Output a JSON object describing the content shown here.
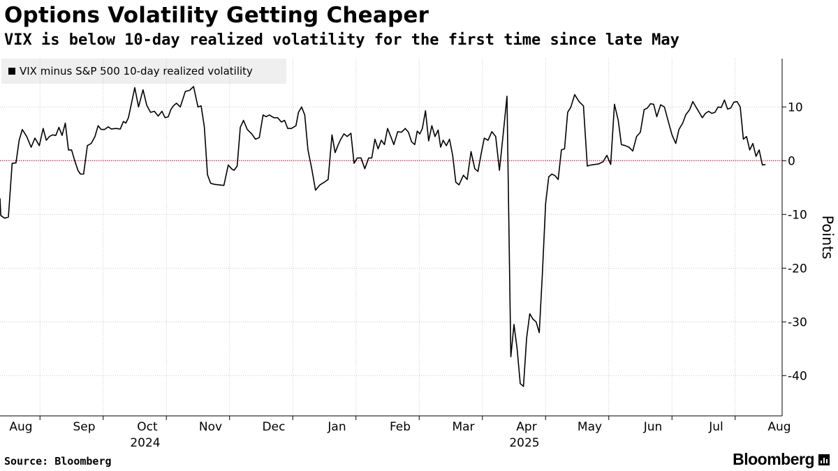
{
  "header": {
    "title": "Options Volatility Getting Cheaper",
    "subtitle": "VIX is below 10-day realized volatility for the first time since late May"
  },
  "footer": {
    "source": "Source: Bloomberg",
    "brand": "Bloomberg"
  },
  "colors": {
    "line": "#000000",
    "zero_line": "#e0435a",
    "grid": "#c8c8c8",
    "legend_bg": "#efefef"
  },
  "chart_data": {
    "type": "line",
    "title": "Options Volatility Getting Cheaper",
    "subtitle": "VIX is below 10-day realized volatility for the first time since late May",
    "ylabel": "Points",
    "xlabel": "",
    "ylim": [
      -47.5,
      19
    ],
    "yticks": [
      10,
      0,
      -10,
      -20,
      -30,
      -40
    ],
    "x_months": [
      "Aug",
      "Sep",
      "Oct",
      "Nov",
      "Dec",
      "Jan",
      "Feb",
      "Mar",
      "Apr",
      "May",
      "Jun",
      "Jul",
      "Aug"
    ],
    "x_years": [
      {
        "label": "2024",
        "month_index": 2
      },
      {
        "label": "2025",
        "month_index": 8
      }
    ],
    "xlim_months": [
      0.0,
      12.15
    ],
    "grid": true,
    "reference_line": {
      "y": 0,
      "style": "dotted"
    },
    "legend": {
      "position": "top-left",
      "entries": [
        "VIX minus S&P 500 10-day realized volatility"
      ]
    },
    "series": [
      {
        "name": "VIX minus S&P 500 10-day realized volatility",
        "x": [
          -0.2,
          -0.12,
          -0.06,
          0,
          0.06,
          0.12,
          0.17,
          0.22,
          0.29,
          0.36,
          0.42,
          0.49,
          0.55,
          0.6,
          0.65,
          0.7,
          0.75,
          0.8,
          0.85,
          0.9,
          0.95,
          1.0,
          1.05,
          1.1,
          1.14,
          1.19,
          1.25,
          1.31,
          1.37,
          1.42,
          1.47,
          1.52,
          1.58,
          1.63,
          1.7,
          1.77,
          1.82,
          1.86,
          1.9,
          1.95,
          2.0,
          2.06,
          2.13,
          2.19,
          2.25,
          2.31,
          2.37,
          2.43,
          2.48,
          2.53,
          2.57,
          2.61,
          2.66,
          2.72,
          2.8,
          2.87,
          2.93,
          3.0,
          3.05,
          3.1,
          3.15,
          3.2,
          3.26,
          3.33,
          3.41,
          3.48,
          3.53,
          3.57,
          3.62,
          3.67,
          3.72,
          3.78,
          3.85,
          3.91,
          3.97,
          4.03,
          4.08,
          4.13,
          4.2,
          4.26,
          4.32,
          4.37,
          4.42,
          4.48,
          4.55,
          4.59,
          4.64,
          4.69,
          4.74,
          4.8,
          4.86,
          4.93,
          5.0,
          5.06,
          5.12,
          5.17,
          5.22,
          5.26,
          5.31,
          5.36,
          5.42,
          5.47,
          5.52,
          5.58,
          5.64,
          5.7,
          5.75,
          5.8,
          5.85,
          5.9,
          5.95,
          6.0,
          6.05,
          6.1,
          6.16,
          6.22,
          6.28,
          6.33,
          6.38,
          6.43,
          6.47,
          6.51,
          6.55,
          6.6,
          6.65,
          6.7,
          6.75,
          6.8,
          6.84,
          6.88,
          6.93,
          6.98,
          7.03,
          7.08,
          7.13,
          7.2,
          7.26,
          7.32,
          7.38,
          7.43,
          7.48,
          7.53,
          7.59,
          7.65,
          7.71,
          7.77,
          7.83,
          7.89,
          7.95,
          8.0,
          8.05,
          8.1,
          8.15,
          8.2,
          8.25,
          8.3,
          8.35,
          8.4,
          8.45,
          8.5,
          8.55,
          8.6,
          8.65,
          8.7,
          8.75,
          8.8,
          8.85,
          8.9,
          8.96,
          9.03,
          9.1,
          9.16,
          9.22,
          9.28,
          9.34,
          9.41,
          9.47,
          9.53,
          9.59,
          9.65,
          9.7,
          9.76,
          9.82,
          9.88,
          9.94,
          10.0,
          10.06,
          10.11,
          10.16,
          10.21,
          10.26,
          10.32,
          10.38,
          10.44,
          10.5,
          10.56,
          10.61,
          10.67,
          10.72,
          10.78,
          10.83,
          10.88,
          10.93,
          10.98,
          11.03,
          11.08,
          11.13,
          11.18,
          11.23,
          11.28,
          11.33,
          11.38,
          11.43,
          11.48,
          11.53,
          11.58,
          11.63,
          11.68,
          11.73,
          11.78,
          11.83,
          11.88,
          11.93,
          11.98
        ],
        "values": [
          -7,
          -10.2,
          -10.7,
          -10.5,
          -0.5,
          -0.4,
          3.8,
          5.8,
          4.5,
          2.5,
          4.2,
          2.8,
          6.0,
          3.8,
          4.5,
          4.8,
          4.7,
          6.2,
          4.7,
          7.0,
          2.0,
          2.0,
          0,
          -1.8,
          -2.5,
          -2.5,
          2.8,
          3.2,
          4.5,
          6.5,
          5.8,
          5.8,
          6.3,
          5.9,
          6.0,
          5.9,
          7.3,
          7.0,
          8.0,
          10.8,
          13.6,
          10.0,
          13.2,
          10.3,
          9.0,
          9.2,
          8.3,
          9.2,
          8.0,
          8.2,
          9.5,
          10.2,
          10.7,
          10.0,
          12.9,
          13.1,
          13.8,
          10.0,
          10.2,
          6.3,
          -2.6,
          -4.2,
          -4.4,
          -4.5,
          -4.6,
          -0.8,
          -1.5,
          -1.8,
          -1.0,
          6.2,
          7.5,
          5.8,
          5.0,
          4.0,
          4.3,
          8.5,
          8.2,
          8.5,
          8.0,
          8.0,
          7.2,
          7.5,
          6.0,
          6.0,
          6.5,
          9.0,
          10.0,
          8.5,
          2.0,
          -1.5,
          -5.5,
          -4.5,
          -4.0,
          -3.5,
          4.8,
          1.5,
          3.0,
          4.0,
          5.0,
          4.5,
          5.1,
          -0.5,
          0.5,
          0.5,
          -1.5,
          0.5,
          0.5,
          4.0,
          2.2,
          3.8,
          3.0,
          6.0,
          4.5,
          3.0,
          5.4,
          5.3,
          6.0,
          5.3,
          3.5,
          3.0,
          5.5,
          5.0,
          6.0,
          9.3,
          3.7,
          6.5,
          4.5,
          5.7,
          2.5,
          3.8,
          2.8,
          4.0,
          1.0,
          -4.0,
          -4.5,
          -2.7,
          -3.5,
          1.7,
          -1.5,
          -2.0,
          1.2,
          4.2,
          3.8,
          5.4,
          4.5,
          -1.8,
          5.0,
          12.0,
          -36.5,
          -30.5,
          -35.0,
          -41.5,
          -42.0,
          -33.0,
          -28.5,
          -29.5,
          -30.0,
          -32.0,
          -21.0,
          -8.0,
          -3.0,
          -2.5,
          -2.8,
          -3.5,
          2.0,
          2.2,
          9.0,
          10.0,
          12.3,
          11.0,
          10.2,
          -1.0,
          -0.8,
          -0.7,
          -0.6,
          -0.2,
          1.0,
          -0.7,
          10.5,
          7.5,
          3.0,
          2.8,
          2.5,
          1.8,
          4.5,
          5.3,
          9.5,
          9.8,
          10.6,
          10.5,
          8.2,
          10.4,
          10.0,
          7.4,
          4.8,
          3.2,
          5.8,
          7.0,
          8.6,
          9.5,
          11.0,
          10.0,
          9.0,
          8.0,
          8.8,
          9.2,
          8.8,
          9.0,
          10.0,
          9.9,
          11.3,
          9.6,
          9.8,
          10.9,
          11.0,
          10.0,
          4.0,
          4.5,
          2.0,
          3.2,
          0.8,
          2.0,
          -0.8,
          -0.7
        ]
      }
    ]
  }
}
